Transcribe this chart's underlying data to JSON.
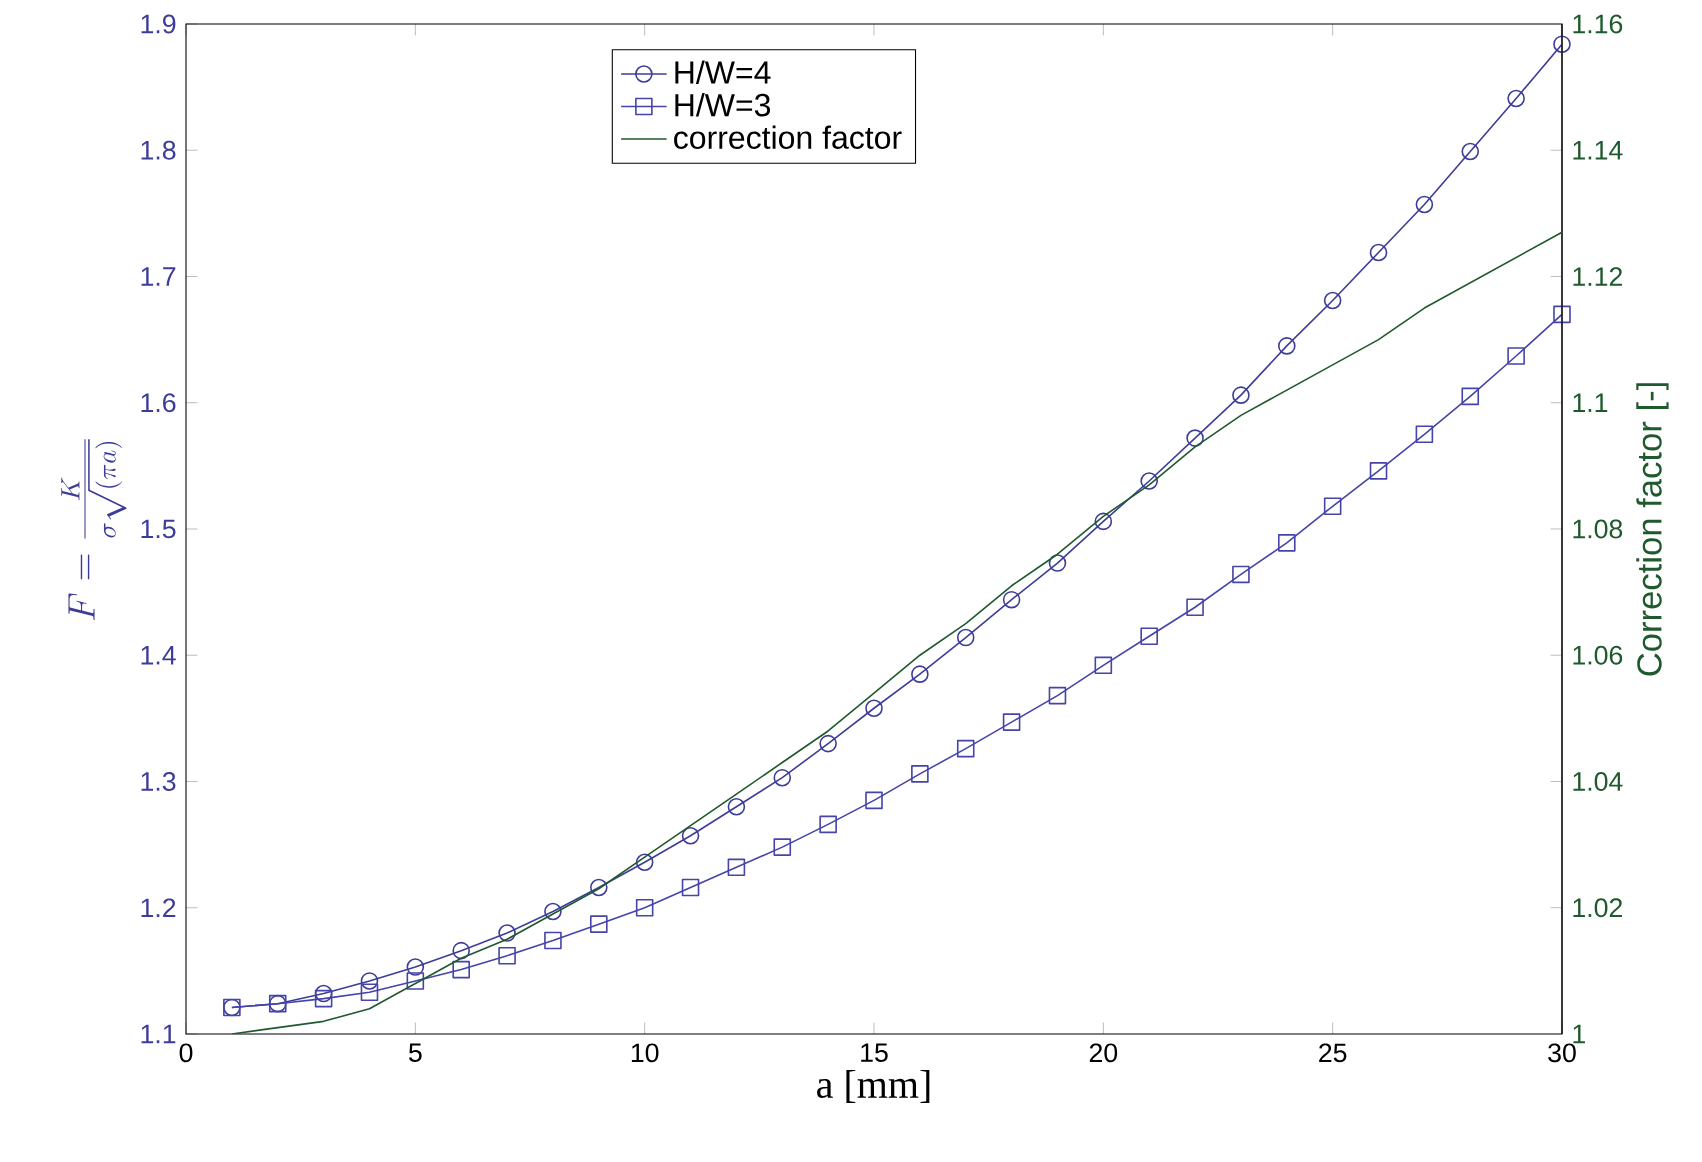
{
  "chart_data": {
    "type": "line",
    "xlabel": "a [mm]",
    "ylabel": "F = \\frac{K}{\\sigma\\sqrt{(\\pi a)}}",
    "y2label": "Correction factor [-]",
    "xlim": [
      0,
      30
    ],
    "xticks": [
      0,
      5,
      10,
      15,
      20,
      25,
      30
    ],
    "ylim": [
      1.1,
      1.9
    ],
    "yticks": [
      1.1,
      1.2,
      1.3,
      1.4,
      1.5,
      1.6,
      1.7,
      1.8,
      1.9
    ],
    "y2lim": [
      1,
      1.16
    ],
    "y2ticks": [
      1,
      1.02,
      1.04,
      1.06,
      1.08,
      1.1,
      1.12,
      1.14,
      1.16
    ],
    "legend": "top",
    "grid": false,
    "line_style": "solid",
    "series": [
      {
        "name": "H/W=4",
        "color": "#3d3d99",
        "marker": "circle",
        "x": [
          1,
          2,
          3,
          4,
          5,
          6,
          7,
          8,
          9,
          10,
          11,
          12,
          13,
          14,
          15,
          16,
          17,
          18,
          19,
          20,
          21,
          22,
          23,
          24,
          25,
          26,
          27,
          28,
          29,
          30
        ],
        "values": [
          1.121,
          1.124,
          1.132,
          1.142,
          1.153,
          1.166,
          1.18,
          1.197,
          1.216,
          1.236,
          1.257,
          1.28,
          1.303,
          1.33,
          1.358,
          1.385,
          1.414,
          1.444,
          1.473,
          1.506,
          1.538,
          1.572,
          1.606,
          1.645,
          1.681,
          1.719,
          1.757,
          1.799,
          1.841,
          1.884
        ]
      },
      {
        "name": "H/W=3",
        "color": "#4444aa",
        "marker": "square",
        "x": [
          1,
          2,
          3,
          4,
          5,
          6,
          7,
          8,
          9,
          10,
          11,
          12,
          13,
          14,
          15,
          16,
          17,
          18,
          19,
          20,
          21,
          22,
          23,
          24,
          25,
          26,
          27,
          28,
          29,
          30
        ],
        "values": [
          1.121,
          1.124,
          1.128,
          1.133,
          1.142,
          1.151,
          1.162,
          1.174,
          1.187,
          1.2,
          1.216,
          1.232,
          1.248,
          1.266,
          1.285,
          1.306,
          1.326,
          1.347,
          1.368,
          1.392,
          1.415,
          1.438,
          1.464,
          1.489,
          1.518,
          1.546,
          1.575,
          1.605,
          1.637,
          1.67
        ]
      },
      {
        "name": "correction factor",
        "color": "#1f5a2e",
        "marker": "none",
        "axis": "y2",
        "x": [
          1,
          2,
          3,
          4,
          5,
          6,
          7,
          8,
          9,
          10,
          11,
          12,
          13,
          14,
          15,
          16,
          17,
          18,
          19,
          20,
          21,
          22,
          23,
          24,
          25,
          26,
          27,
          28,
          29,
          30
        ],
        "values": [
          1.0,
          1.001,
          1.002,
          1.004,
          1.008,
          1.012,
          1.015,
          1.019,
          1.023,
          1.028,
          1.033,
          1.038,
          1.043,
          1.048,
          1.054,
          1.06,
          1.065,
          1.071,
          1.076,
          1.082,
          1.087,
          1.093,
          1.098,
          1.102,
          1.106,
          1.11,
          1.115,
          1.119,
          1.123,
          1.127
        ]
      }
    ]
  }
}
